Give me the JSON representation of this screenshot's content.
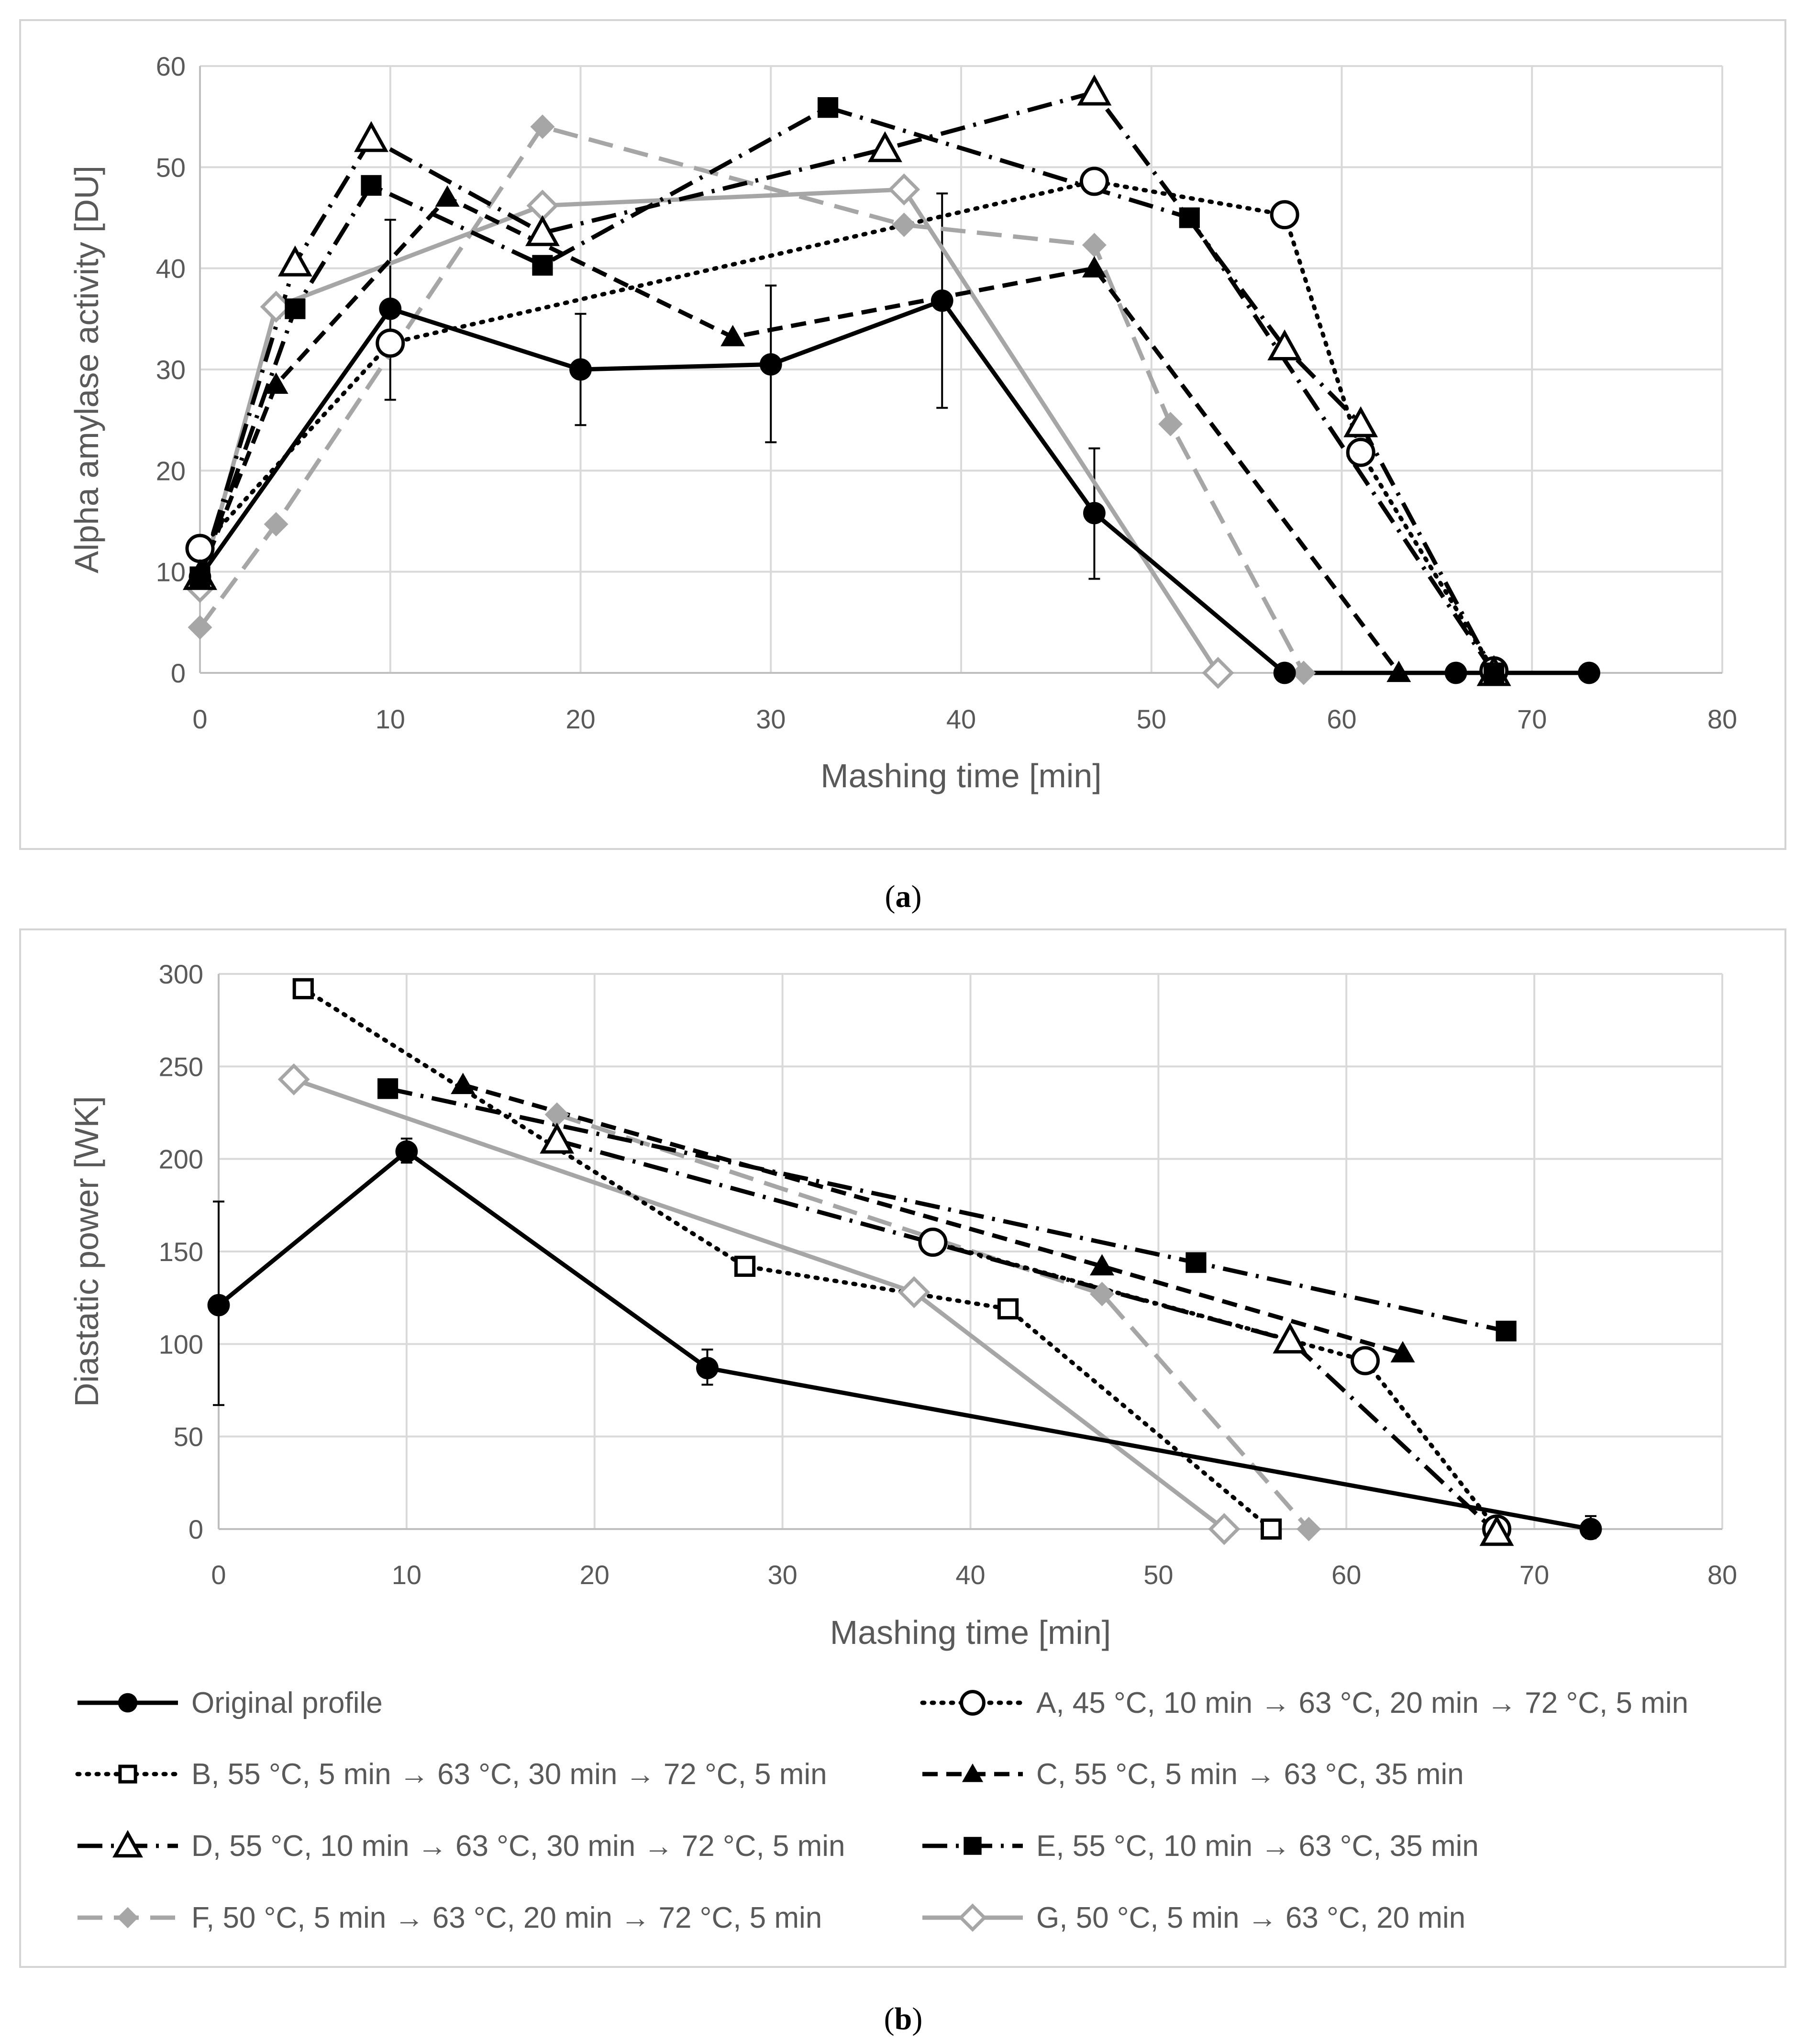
{
  "chart_data": [
    {
      "type": "line",
      "panel_label": "a",
      "ylabel": "Alpha amylase activity [DU]",
      "xlabel": "Mashing time [min]",
      "xlim": [
        0,
        80
      ],
      "ylim": [
        0,
        60
      ],
      "xticks": [
        0,
        10,
        20,
        30,
        40,
        50,
        60,
        70,
        80
      ],
      "yticks": [
        0,
        10,
        20,
        30,
        40,
        50,
        60
      ],
      "grid": true,
      "series": [
        {
          "key": "orig",
          "points": [
            [
              0,
              9.5
            ],
            [
              10,
              36
            ],
            [
              20,
              30
            ],
            [
              30,
              30.5
            ],
            [
              39,
              36.8
            ],
            [
              47,
              15.8
            ],
            [
              57,
              0
            ],
            [
              66,
              0
            ],
            [
              73,
              0
            ]
          ],
          "errors": [
            [
              10,
              27,
              44.8
            ],
            [
              20,
              24.5,
              35.5
            ],
            [
              30,
              22.8,
              38.3
            ],
            [
              39,
              26.2,
              47.4
            ],
            [
              47,
              9.3,
              22.2
            ]
          ]
        },
        {
          "key": "A",
          "points": [
            [
              0,
              12.3
            ],
            [
              10,
              32.6
            ],
            [
              47,
              48.6
            ],
            [
              57,
              45.3
            ],
            [
              61,
              21.8
            ],
            [
              68,
              0.2
            ]
          ]
        },
        {
          "key": "C",
          "points": [
            [
              0,
              9.5
            ],
            [
              4,
              28.5
            ],
            [
              13,
              47
            ],
            [
              28,
              33.2
            ],
            [
              47,
              40
            ],
            [
              63,
              0
            ]
          ]
        },
        {
          "key": "D",
          "points": [
            [
              0,
              9.5
            ],
            [
              5,
              40.5
            ],
            [
              9,
              52.8
            ],
            [
              18,
              43.5
            ],
            [
              36,
              51.8
            ],
            [
              47,
              57.4
            ],
            [
              57,
              32.2
            ],
            [
              61,
              24.6
            ],
            [
              68,
              0
            ]
          ]
        },
        {
          "key": "E",
          "points": [
            [
              0,
              9.5
            ],
            [
              5,
              36
            ],
            [
              9,
              48.2
            ],
            [
              18,
              40.3
            ],
            [
              33,
              55.9
            ],
            [
              52,
              45
            ],
            [
              68,
              0
            ]
          ]
        },
        {
          "key": "F",
          "points": [
            [
              0,
              4.5
            ],
            [
              4,
              14.7
            ],
            [
              18,
              54
            ],
            [
              37,
              44.3
            ],
            [
              47,
              42.3
            ],
            [
              51,
              24.6
            ],
            [
              58,
              0
            ]
          ]
        },
        {
          "key": "G",
          "points": [
            [
              0,
              8.5
            ],
            [
              4,
              36.2
            ],
            [
              18,
              46.2
            ],
            [
              37,
              47.8
            ],
            [
              53.5,
              0
            ]
          ]
        }
      ]
    },
    {
      "type": "line",
      "panel_label": "b",
      "ylabel": "Diastatic power [WK]",
      "xlabel": "Mashing time [min]",
      "xlim": [
        0,
        80
      ],
      "ylim": [
        0,
        300
      ],
      "xticks": [
        0,
        10,
        20,
        30,
        40,
        50,
        60,
        70,
        80
      ],
      "yticks": [
        0,
        50,
        100,
        150,
        200,
        250,
        300
      ],
      "grid": true,
      "series": [
        {
          "key": "orig",
          "points": [
            [
              0,
              121
            ],
            [
              10,
              204
            ],
            [
              26,
              87
            ],
            [
              73,
              0
            ]
          ],
          "errors": [
            [
              0,
              67,
              177
            ],
            [
              10,
              198,
              211
            ],
            [
              26,
              78,
              97
            ],
            [
              73,
              -5,
              7
            ]
          ]
        },
        {
          "key": "A",
          "points": [
            [
              38,
              155
            ],
            [
              61,
              91
            ],
            [
              68,
              0
            ]
          ]
        },
        {
          "key": "B",
          "points": [
            [
              4.5,
              292
            ],
            [
              28,
              142
            ],
            [
              42,
              119
            ],
            [
              56,
              0
            ]
          ]
        },
        {
          "key": "C",
          "points": [
            [
              13,
              240
            ],
            [
              47,
              142
            ],
            [
              63,
              95
            ]
          ]
        },
        {
          "key": "D",
          "points": [
            [
              18,
              210
            ],
            [
              57,
              102
            ],
            [
              68,
              -2
            ]
          ]
        },
        {
          "key": "E",
          "points": [
            [
              9,
              238
            ],
            [
              52,
              144
            ],
            [
              68.5,
              107
            ]
          ]
        },
        {
          "key": "F",
          "points": [
            [
              18,
              224
            ],
            [
              47,
              127
            ],
            [
              58,
              0
            ]
          ]
        },
        {
          "key": "G",
          "points": [
            [
              4,
              243
            ],
            [
              37,
              128
            ],
            [
              53.5,
              0
            ]
          ]
        }
      ]
    }
  ],
  "legend": {
    "entries": [
      {
        "key": "orig",
        "label": "Original profile"
      },
      {
        "key": "A",
        "label": "A, 45 °C, 10 min → 63 °C, 20 min → 72 °C, 5 min"
      },
      {
        "key": "B",
        "label": "B, 55 °C, 5 min → 63 °C, 30 min → 72 °C, 5 min"
      },
      {
        "key": "C",
        "label": "C, 55 °C, 5 min → 63 °C, 35 min"
      },
      {
        "key": "D",
        "label": "D, 55 °C, 10 min → 63 °C, 30 min → 72 °C, 5 min"
      },
      {
        "key": "E",
        "label": "E, 55 °C, 10 min → 63 °C, 35 min"
      },
      {
        "key": "F",
        "label": "F, 50 °C, 5 min → 63 °C, 20 min → 72 °C, 5 min"
      },
      {
        "key": "G",
        "label": "G, 50 °C, 5 min → 63 °C, 20 min"
      }
    ]
  },
  "styles": {
    "orig": {
      "color": "#000000",
      "dash": "solid",
      "marker": "circle-filled"
    },
    "A": {
      "color": "#000000",
      "dash": "dot",
      "marker": "circle-open"
    },
    "B": {
      "color": "#000000",
      "dash": "dot",
      "marker": "square-open"
    },
    "C": {
      "color": "#000000",
      "dash": "dash",
      "marker": "triangle-filled"
    },
    "D": {
      "color": "#000000",
      "dash": "longdash-dot",
      "marker": "triangle-open"
    },
    "E": {
      "color": "#000000",
      "dash": "longdash-dot",
      "marker": "square-filled"
    },
    "F": {
      "color": "#a6a6a6",
      "dash": "longdash",
      "marker": "diamond-filled"
    },
    "G": {
      "color": "#a6a6a6",
      "dash": "solid",
      "marker": "diamond-open"
    }
  },
  "captions": {
    "a_open": "(",
    "a_label": "a",
    "a_close": ")",
    "b_open": "(",
    "b_label": "b",
    "b_close": ")"
  }
}
